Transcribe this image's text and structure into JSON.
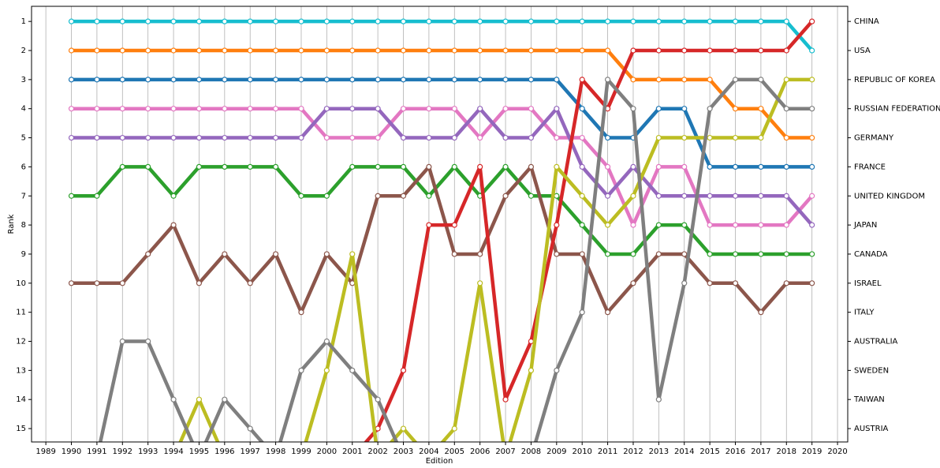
{
  "chart_data": {
    "type": "line",
    "xlabel": "Edition",
    "ylabel": "Rank",
    "x": [
      1990,
      1991,
      1992,
      1993,
      1994,
      1995,
      1996,
      1997,
      1998,
      1999,
      2000,
      2001,
      2002,
      2003,
      2004,
      2005,
      2006,
      2007,
      2008,
      2009,
      2010,
      2011,
      2012,
      2013,
      2014,
      2015,
      2016,
      2017,
      2018,
      2019
    ],
    "xlim": [
      1988.44,
      2020.4
    ],
    "xticks": [
      1989,
      1990,
      1991,
      1992,
      1993,
      1994,
      1995,
      1996,
      1997,
      1998,
      1999,
      2000,
      2001,
      2002,
      2003,
      2004,
      2005,
      2006,
      2007,
      2008,
      2009,
      2010,
      2011,
      2012,
      2013,
      2014,
      2015,
      2016,
      2017,
      2018,
      2019,
      2020
    ],
    "ylim": [
      15.46,
      0.48
    ],
    "yticks": [
      1,
      2,
      3,
      4,
      5,
      6,
      7,
      8,
      9,
      10,
      11,
      12,
      13,
      14,
      15
    ],
    "y2lim": [
      15.46,
      0.48
    ],
    "y2ticks": [
      {
        "value": 1,
        "label": "CHINA"
      },
      {
        "value": 2,
        "label": "USA"
      },
      {
        "value": 3,
        "label": "REPUBLIC OF KOREA"
      },
      {
        "value": 4,
        "label": "RUSSIAN FEDERATION"
      },
      {
        "value": 5,
        "label": "GERMANY"
      },
      {
        "value": 6,
        "label": "FRANCE"
      },
      {
        "value": 7,
        "label": "UNITED KINGDOM"
      },
      {
        "value": 8,
        "label": "JAPAN"
      },
      {
        "value": 9,
        "label": "CANADA"
      },
      {
        "value": 10,
        "label": "ISRAEL"
      },
      {
        "value": 11,
        "label": "ITALY"
      },
      {
        "value": 12,
        "label": "AUSTRALIA"
      },
      {
        "value": 13,
        "label": "SWEDEN"
      },
      {
        "value": 14,
        "label": "TAIWAN"
      },
      {
        "value": 15,
        "label": "AUSTRIA"
      }
    ],
    "grid": true,
    "series": [
      {
        "color": "#17becf",
        "values": [
          1,
          1,
          1,
          1,
          1,
          1,
          1,
          1,
          1,
          1,
          1,
          1,
          1,
          1,
          1,
          1,
          1,
          1,
          1,
          1,
          1,
          1,
          1,
          1,
          1,
          1,
          1,
          1,
          1,
          2
        ]
      },
      {
        "color": "#ff7f0e",
        "values": [
          2,
          2,
          2,
          2,
          2,
          2,
          2,
          2,
          2,
          2,
          2,
          2,
          2,
          2,
          2,
          2,
          2,
          2,
          2,
          2,
          2,
          2,
          3,
          3,
          3,
          3,
          4,
          4,
          5,
          5
        ]
      },
      {
        "color": "#1f77b4",
        "values": [
          3,
          3,
          3,
          3,
          3,
          3,
          3,
          3,
          3,
          3,
          3,
          3,
          3,
          3,
          3,
          3,
          3,
          3,
          3,
          3,
          4,
          5,
          5,
          4,
          4,
          6,
          6,
          6,
          6,
          6
        ]
      },
      {
        "color": "#e377c2",
        "values": [
          4,
          4,
          4,
          4,
          4,
          4,
          4,
          4,
          4,
          4,
          5,
          5,
          5,
          4,
          4,
          4,
          5,
          4,
          4,
          5,
          5,
          6,
          8,
          6,
          6,
          8,
          8,
          8,
          8,
          7
        ]
      },
      {
        "color": "#9467bd",
        "values": [
          5,
          5,
          5,
          5,
          5,
          5,
          5,
          5,
          5,
          5,
          4,
          4,
          4,
          5,
          5,
          5,
          4,
          5,
          5,
          4,
          6,
          7,
          6,
          7,
          7,
          7,
          7,
          7,
          7,
          8
        ]
      },
      {
        "color": "#2ca02c",
        "values": [
          7,
          7,
          6,
          6,
          7,
          6,
          6,
          6,
          6,
          7,
          7,
          6,
          6,
          6,
          7,
          6,
          7,
          6,
          7,
          7,
          8,
          9,
          9,
          8,
          8,
          9,
          9,
          9,
          9,
          9
        ]
      },
      {
        "color": "#8c564b",
        "values": [
          10,
          10,
          10,
          9,
          8,
          10,
          9,
          10,
          9,
          11,
          9,
          10,
          7,
          7,
          6,
          9,
          9,
          7,
          6,
          9,
          9,
          11,
          10,
          9,
          9,
          10,
          10,
          11,
          10,
          10
        ]
      },
      {
        "color": "#d62728",
        "values": [
          null,
          null,
          null,
          null,
          null,
          null,
          null,
          null,
          null,
          null,
          null,
          16,
          15,
          13,
          8,
          8,
          6,
          14,
          12,
          8,
          3,
          4,
          2,
          2,
          2,
          2,
          2,
          2,
          2,
          1
        ]
      },
      {
        "color": "#bcbd22",
        "values": [
          null,
          null,
          null,
          null,
          16,
          14,
          16,
          null,
          null,
          16,
          13,
          9,
          16,
          15,
          16,
          15,
          10,
          16,
          13,
          6,
          7,
          8,
          7,
          5,
          5,
          5,
          5,
          5,
          3,
          3
        ]
      },
      {
        "color": "#7f7f7f",
        "values": [
          null,
          16,
          12,
          12,
          14,
          16,
          14,
          15,
          16,
          13,
          12,
          13,
          14,
          16,
          null,
          null,
          null,
          null,
          16,
          13,
          11,
          3,
          4,
          14,
          10,
          4,
          3,
          3,
          4,
          4
        ]
      }
    ]
  }
}
